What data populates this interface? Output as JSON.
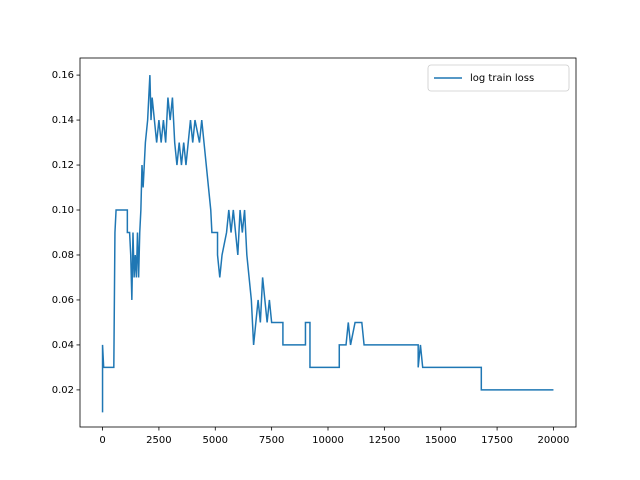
{
  "chart_data": {
    "type": "line",
    "x": [
      0,
      0,
      0,
      50,
      500,
      550,
      600,
      1100,
      1100,
      1200,
      1250,
      1300,
      1350,
      1400,
      1450,
      1500,
      1550,
      1600,
      1650,
      1700,
      1750,
      1800,
      1850,
      1900,
      2000,
      2050,
      2100,
      2150,
      2200,
      2300,
      2400,
      2500,
      2600,
      2700,
      2800,
      2900,
      3000,
      3100,
      3200,
      3300,
      3400,
      3500,
      3600,
      3700,
      3800,
      3900,
      4000,
      4100,
      4300,
      4400,
      4500,
      4600,
      4700,
      4800,
      4850,
      5100,
      5100,
      5200,
      5300,
      5500,
      5600,
      5700,
      5800,
      5900,
      6000,
      6100,
      6200,
      6300,
      6400,
      6500,
      6600,
      6700,
      6800,
      6900,
      7000,
      7100,
      7200,
      7300,
      7400,
      7500,
      8000,
      8000,
      9000,
      9000,
      9200,
      9200,
      10500,
      10500,
      10800,
      10900,
      11000,
      11200,
      11500,
      11600,
      14000,
      14000,
      14100,
      14200,
      16800,
      16800,
      20000
    ],
    "series": [
      {
        "name": "log train loss",
        "color": "#1f77b4",
        "values": [
          0.04,
          0.01,
          0.04,
          0.03,
          0.03,
          0.09,
          0.1,
          0.1,
          0.09,
          0.09,
          0.08,
          0.06,
          0.09,
          0.07,
          0.08,
          0.07,
          0.09,
          0.07,
          0.09,
          0.1,
          0.12,
          0.11,
          0.12,
          0.13,
          0.14,
          0.15,
          0.16,
          0.14,
          0.15,
          0.14,
          0.13,
          0.14,
          0.13,
          0.14,
          0.13,
          0.15,
          0.14,
          0.15,
          0.13,
          0.12,
          0.13,
          0.12,
          0.13,
          0.12,
          0.13,
          0.14,
          0.13,
          0.14,
          0.13,
          0.14,
          0.13,
          0.12,
          0.11,
          0.1,
          0.09,
          0.09,
          0.08,
          0.07,
          0.08,
          0.09,
          0.1,
          0.09,
          0.1,
          0.09,
          0.08,
          0.1,
          0.09,
          0.1,
          0.08,
          0.07,
          0.06,
          0.04,
          0.05,
          0.06,
          0.05,
          0.07,
          0.06,
          0.05,
          0.06,
          0.05,
          0.05,
          0.04,
          0.04,
          0.05,
          0.05,
          0.03,
          0.03,
          0.04,
          0.04,
          0.05,
          0.04,
          0.05,
          0.05,
          0.04,
          0.04,
          0.03,
          0.04,
          0.03,
          0.03,
          0.02,
          0.02
        ]
      }
    ],
    "xlim": [
      -1000,
      21000
    ],
    "xticks": [
      0,
      2500,
      5000,
      7500,
      10000,
      12500,
      15000,
      17500,
      20000
    ],
    "ylim": [
      0.0035,
      0.1676
    ],
    "yticks": [
      0.02,
      0.04,
      0.06,
      0.08,
      {
        "value": 0.1,
        "label": "0.10"
      },
      0.12,
      0.14,
      0.16
    ],
    "grid": false,
    "legend": "upper right"
  }
}
